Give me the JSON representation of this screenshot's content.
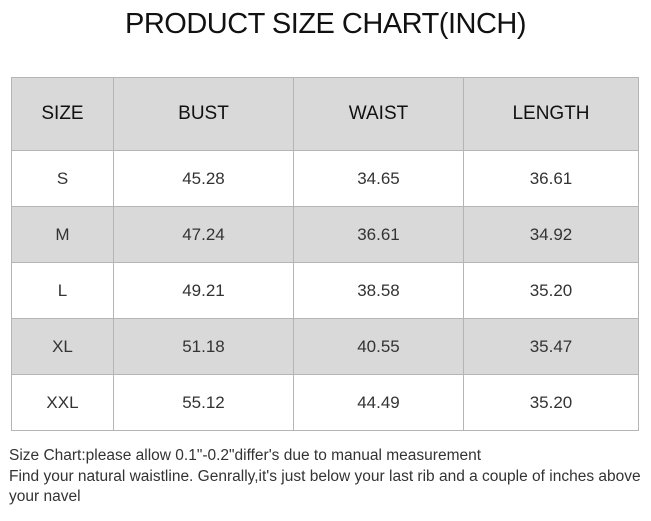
{
  "title": "PRODUCT SIZE CHART(INCH)",
  "table": {
    "headers": [
      "SIZE",
      "BUST",
      "WAIST",
      "LENGTH"
    ],
    "rows": [
      [
        "S",
        "45.28",
        "34.65",
        "36.61"
      ],
      [
        "M",
        "47.24",
        "36.61",
        "34.92"
      ],
      [
        "L",
        "49.21",
        "38.58",
        "35.20"
      ],
      [
        "XL",
        "51.18",
        "40.55",
        "35.47"
      ],
      [
        "XXL",
        "55.12",
        "44.49",
        "35.20"
      ]
    ]
  },
  "notes": [
    "Size Chart:please allow 0.1\"-0.2\"differ's due to manual measurement",
    "Find your natural waistline. Genrally,it's just below your last rib and a couple of inches above your navel"
  ]
}
